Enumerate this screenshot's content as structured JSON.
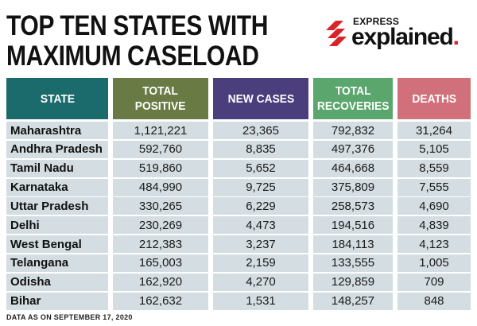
{
  "title_lines": [
    "TOP TEN STATES WITH",
    "MAXIMUM CASELOAD"
  ],
  "brand": {
    "express": "EXPRESS",
    "explained": "explained",
    "dot": "."
  },
  "footnote": "DATA AS ON SEPTEMBER 17, 2020",
  "colors": {
    "state": "#1b6b6c",
    "total_positive": "#6a7a44",
    "new_cases": "#4a3e7c",
    "total_recoveries": "#5ba66c",
    "deaths": "#d1707a",
    "cell": "#d4dde1",
    "brand_red": "#d9232a"
  },
  "chart_data": {
    "type": "table",
    "title": "TOP TEN STATES WITH MAXIMUM CASELOAD",
    "columns": [
      "STATE",
      "TOTAL POSITIVE",
      "NEW CASES",
      "TOTAL RECOVERIES",
      "DEATHS"
    ],
    "header_lines": [
      [
        "STATE"
      ],
      [
        "TOTAL",
        "POSITIVE"
      ],
      [
        "NEW CASES"
      ],
      [
        "TOTAL",
        "RECOVERIES"
      ],
      [
        "DEATHS"
      ]
    ],
    "rows": [
      [
        "Maharashtra",
        "1,121,221",
        "23,365",
        "792,832",
        "31,264"
      ],
      [
        "Andhra Pradesh",
        "592,760",
        "8,835",
        "497,376",
        "5,105"
      ],
      [
        "Tamil Nadu",
        "519,860",
        "5,652",
        "464,668",
        "8,559"
      ],
      [
        "Karnataka",
        "484,990",
        "9,725",
        "375,809",
        "7,555"
      ],
      [
        "Uttar Pradesh",
        "330,265",
        "6,229",
        "258,573",
        "4,690"
      ],
      [
        "Delhi",
        "230,269",
        "4,473",
        "194,516",
        "4,839"
      ],
      [
        "West Bengal",
        "212,383",
        "3,237",
        "184,113",
        "4,123"
      ],
      [
        "Telangana",
        "165,003",
        "2,159",
        "133,555",
        "1,005"
      ],
      [
        "Odisha",
        "162,920",
        "4,270",
        "129,859",
        "709"
      ],
      [
        "Bihar",
        "162,632",
        "1,531",
        "148,257",
        "848"
      ]
    ]
  }
}
